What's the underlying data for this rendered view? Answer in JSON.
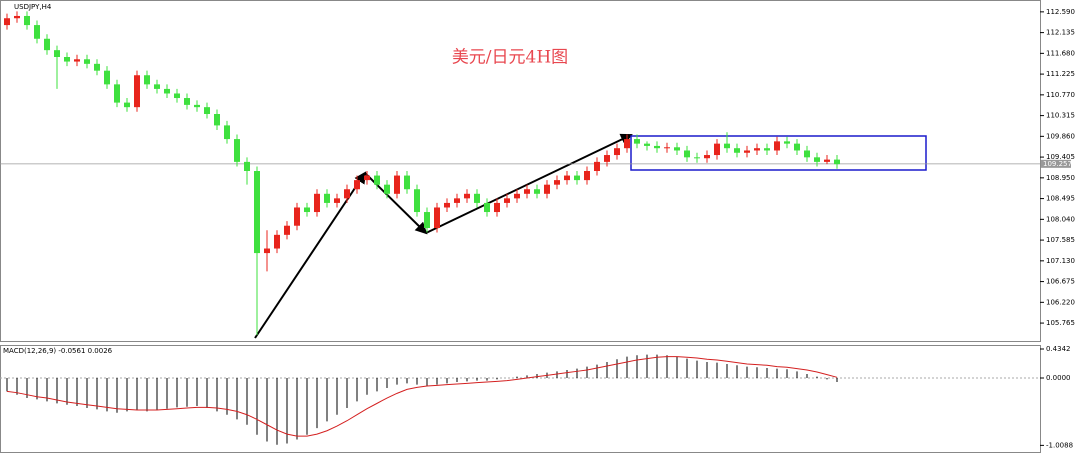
{
  "chart_data": [
    {
      "type": "candlestick",
      "title": "USDJPY,H4",
      "annotation": "美元/日元4H图",
      "up_color": "#e8241c",
      "down_color": "#3ee03e",
      "open": [
        112.3,
        112.45,
        112.5,
        112.3,
        112.0,
        111.75,
        111.6,
        111.5,
        111.55,
        111.45,
        111.3,
        111.0,
        110.6,
        110.5,
        111.2,
        111.0,
        110.9,
        110.8,
        110.7,
        110.55,
        110.5,
        110.35,
        110.1,
        109.8,
        109.3,
        109.1,
        107.3,
        107.4,
        107.7,
        107.9,
        108.3,
        108.2,
        108.6,
        108.4,
        108.5,
        108.7,
        108.9,
        109.0,
        108.8,
        108.6,
        109.0,
        108.7,
        108.2,
        107.85,
        108.3,
        108.4,
        108.5,
        108.6,
        108.4,
        108.2,
        108.4,
        108.5,
        108.6,
        108.7,
        108.6,
        108.8,
        108.9,
        109.0,
        108.9,
        109.1,
        109.3,
        109.45,
        109.6,
        109.8,
        109.7,
        109.65,
        109.6,
        109.62,
        109.55,
        109.4,
        109.38,
        109.45,
        109.7,
        109.6,
        109.5,
        109.55,
        109.6,
        109.55,
        109.75,
        109.7,
        109.55,
        109.4,
        109.3,
        109.35
      ],
      "high": [
        112.55,
        112.6,
        112.6,
        112.4,
        112.1,
        111.85,
        111.7,
        111.65,
        111.65,
        111.55,
        111.4,
        111.1,
        110.7,
        111.3,
        111.3,
        111.1,
        111.0,
        110.9,
        110.8,
        110.65,
        110.6,
        110.45,
        110.2,
        109.9,
        109.4,
        109.2,
        107.8,
        107.8,
        108.0,
        108.4,
        108.4,
        108.7,
        108.7,
        108.6,
        108.8,
        109.0,
        109.1,
        109.1,
        108.9,
        109.1,
        109.1,
        108.8,
        108.3,
        108.4,
        108.5,
        108.6,
        108.7,
        108.7,
        108.5,
        108.5,
        108.6,
        108.7,
        108.8,
        108.8,
        108.9,
        109.0,
        109.1,
        109.1,
        109.2,
        109.4,
        109.55,
        109.7,
        109.9,
        109.9,
        109.75,
        109.75,
        109.72,
        109.72,
        109.65,
        109.5,
        109.55,
        109.8,
        109.95,
        109.7,
        109.65,
        109.7,
        109.7,
        109.85,
        109.85,
        109.8,
        109.65,
        109.5,
        109.45,
        109.45
      ],
      "low": [
        112.2,
        112.35,
        112.2,
        111.9,
        111.65,
        110.9,
        111.4,
        111.4,
        111.35,
        111.2,
        110.9,
        110.5,
        110.4,
        110.4,
        110.9,
        110.8,
        110.7,
        110.6,
        110.45,
        110.4,
        110.25,
        110.0,
        109.7,
        109.2,
        108.8,
        105.5,
        106.9,
        107.3,
        107.6,
        107.8,
        108.1,
        108.1,
        108.3,
        108.3,
        108.4,
        108.6,
        108.8,
        108.7,
        108.5,
        108.5,
        108.6,
        108.1,
        107.75,
        107.75,
        108.2,
        108.3,
        108.4,
        108.3,
        108.1,
        108.1,
        108.3,
        108.4,
        108.5,
        108.5,
        108.5,
        108.7,
        108.8,
        108.8,
        108.8,
        109.0,
        109.2,
        109.35,
        109.5,
        109.6,
        109.55,
        109.5,
        109.5,
        109.45,
        109.3,
        109.28,
        109.28,
        109.35,
        109.5,
        109.4,
        109.4,
        109.45,
        109.45,
        109.45,
        109.6,
        109.45,
        109.3,
        109.2,
        109.25,
        109.15
      ],
      "close": [
        112.45,
        112.5,
        112.3,
        112.0,
        111.75,
        111.6,
        111.5,
        111.55,
        111.45,
        111.3,
        111.0,
        110.6,
        110.5,
        111.2,
        111.0,
        110.9,
        110.8,
        110.7,
        110.55,
        110.5,
        110.35,
        110.1,
        109.8,
        109.3,
        109.1,
        107.3,
        107.4,
        107.7,
        107.9,
        108.3,
        108.2,
        108.6,
        108.4,
        108.5,
        108.7,
        108.9,
        109.0,
        108.8,
        108.6,
        109.0,
        108.7,
        108.2,
        107.85,
        108.3,
        108.4,
        108.5,
        108.6,
        108.4,
        108.2,
        108.4,
        108.5,
        108.6,
        108.7,
        108.6,
        108.8,
        108.9,
        109.0,
        108.9,
        109.1,
        109.3,
        109.45,
        109.6,
        109.8,
        109.7,
        109.65,
        109.6,
        109.62,
        109.55,
        109.4,
        109.38,
        109.45,
        109.7,
        109.6,
        109.5,
        109.55,
        109.6,
        109.55,
        109.75,
        109.7,
        109.55,
        109.4,
        109.3,
        109.35,
        109.25
      ],
      "ylim": [
        105.35,
        112.85
      ],
      "yticks": [
        {
          "value": 112.59,
          "label": "112.590"
        },
        {
          "value": 112.135,
          "label": "112.135"
        },
        {
          "value": 111.68,
          "label": "111.680"
        },
        {
          "value": 111.225,
          "label": "111.225"
        },
        {
          "value": 110.77,
          "label": "110.770"
        },
        {
          "value": 110.315,
          "label": "110.315"
        },
        {
          "value": 109.86,
          "label": "109.860"
        },
        {
          "value": 109.405,
          "label": "109.405"
        },
        {
          "value": 108.95,
          "label": "108.950"
        },
        {
          "value": 108.495,
          "label": "108.495"
        },
        {
          "value": 108.04,
          "label": "108.040"
        },
        {
          "value": 107.585,
          "label": "107.585"
        },
        {
          "value": 107.13,
          "label": "107.130"
        },
        {
          "value": 106.675,
          "label": "106.675"
        },
        {
          "value": 106.22,
          "label": "106.220"
        },
        {
          "value": 105.765,
          "label": "105.765"
        }
      ],
      "current_price": {
        "value": 109.257,
        "label": "109.257"
      }
    },
    {
      "type": "macd",
      "title": "MACD(12,26,9) -0.0561 0.0026",
      "histogram": {
        "color": "#000000",
        "values": [
          -0.2,
          -0.25,
          -0.3,
          -0.32,
          -0.35,
          -0.38,
          -0.4,
          -0.42,
          -0.45,
          -0.47,
          -0.5,
          -0.52,
          -0.5,
          -0.48,
          -0.5,
          -0.48,
          -0.46,
          -0.44,
          -0.43,
          -0.42,
          -0.45,
          -0.5,
          -0.55,
          -0.62,
          -0.7,
          -0.85,
          -0.95,
          -1.0,
          -0.98,
          -0.92,
          -0.85,
          -0.75,
          -0.65,
          -0.55,
          -0.45,
          -0.35,
          -0.25,
          -0.2,
          -0.15,
          -0.1,
          -0.08,
          -0.1,
          -0.12,
          -0.1,
          -0.08,
          -0.06,
          -0.05,
          -0.04,
          -0.04,
          -0.02,
          0.0,
          0.02,
          0.04,
          0.06,
          0.08,
          0.1,
          0.12,
          0.14,
          0.17,
          0.2,
          0.24,
          0.28,
          0.32,
          0.34,
          0.35,
          0.35,
          0.34,
          0.32,
          0.29,
          0.26,
          0.24,
          0.23,
          0.21,
          0.19,
          0.17,
          0.16,
          0.15,
          0.14,
          0.13,
          0.1,
          0.06,
          0.02,
          -0.02,
          -0.06
        ]
      },
      "signal": {
        "color": "#d42020",
        "values": [
          -0.2,
          -0.22,
          -0.25,
          -0.28,
          -0.3,
          -0.33,
          -0.36,
          -0.38,
          -0.4,
          -0.42,
          -0.44,
          -0.46,
          -0.47,
          -0.48,
          -0.48,
          -0.48,
          -0.47,
          -0.46,
          -0.45,
          -0.44,
          -0.44,
          -0.45,
          -0.47,
          -0.5,
          -0.55,
          -0.62,
          -0.7,
          -0.78,
          -0.84,
          -0.87,
          -0.87,
          -0.84,
          -0.79,
          -0.72,
          -0.64,
          -0.55,
          -0.46,
          -0.38,
          -0.3,
          -0.23,
          -0.17,
          -0.14,
          -0.12,
          -0.11,
          -0.1,
          -0.09,
          -0.08,
          -0.07,
          -0.06,
          -0.05,
          -0.04,
          -0.02,
          0.0,
          0.02,
          0.04,
          0.06,
          0.08,
          0.1,
          0.12,
          0.15,
          0.18,
          0.21,
          0.24,
          0.27,
          0.29,
          0.31,
          0.32,
          0.32,
          0.31,
          0.3,
          0.28,
          0.27,
          0.25,
          0.23,
          0.21,
          0.2,
          0.19,
          0.17,
          0.16,
          0.14,
          0.12,
          0.09,
          0.05,
          0.01
        ]
      },
      "ylim": [
        -1.108,
        0.479
      ],
      "yticks": [
        {
          "value": 0.4342,
          "label": "0.4342"
        },
        {
          "value": 0.0,
          "label": "0.0000"
        },
        {
          "value": -1.0088,
          "label": "-1.0088"
        }
      ]
    }
  ]
}
